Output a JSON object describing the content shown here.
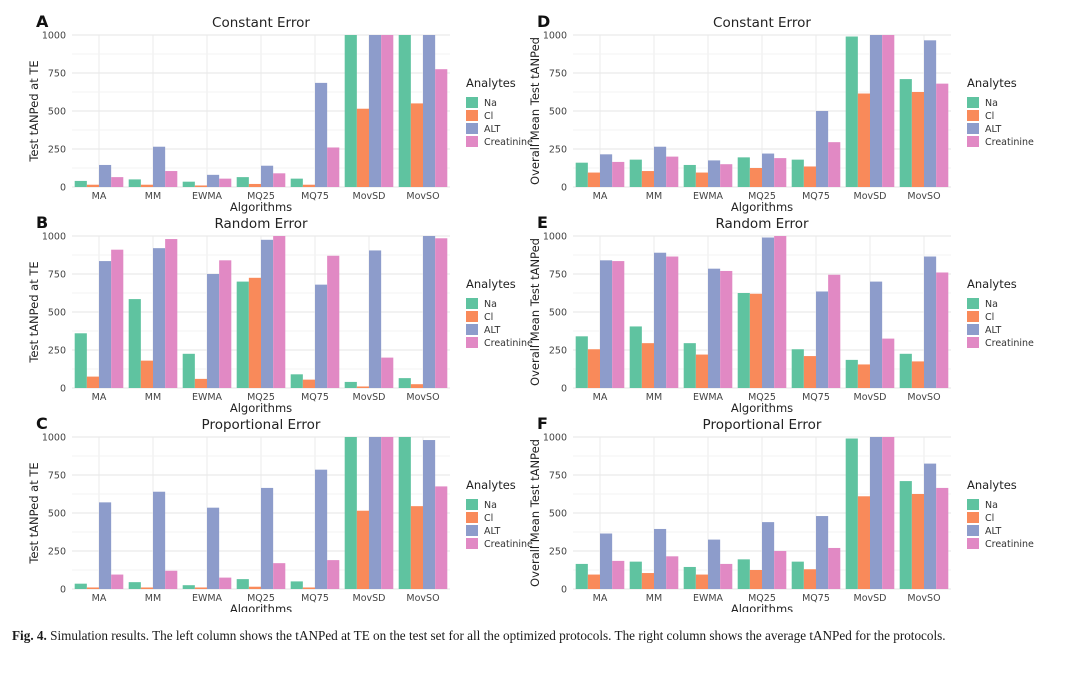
{
  "legend_title": "Analytes",
  "colors": {
    "Na": "#5fc3a0",
    "Cl": "#f98a5a",
    "ALT": "#8d9ccb",
    "Creatinine": "#e189c4"
  },
  "caption": {
    "label": "Fig. 4.",
    "text": " Simulation results. The left column shows the tANPed at TE on the test set for all the optimized protocols. The right column shows the average tANPed for the protocols."
  },
  "chart_data": [
    {
      "panel": "A",
      "type": "bar",
      "title": "Constant Error",
      "xlabel": "Algorithms",
      "ylabel": "Test tANPed at TE",
      "ylim": [
        0,
        1000
      ],
      "yticks": [
        0,
        250,
        500,
        750,
        1000
      ],
      "categories": [
        "MA",
        "MM",
        "EWMA",
        "MQ25",
        "MQ75",
        "MovSD",
        "MovSO"
      ],
      "legend_position": "right",
      "grid": true,
      "series": [
        {
          "name": "Na",
          "values": [
            40,
            50,
            35,
            65,
            55,
            1000,
            1000
          ]
        },
        {
          "name": "Cl",
          "values": [
            15,
            15,
            10,
            20,
            15,
            515,
            550
          ]
        },
        {
          "name": "ALT",
          "values": [
            145,
            265,
            80,
            140,
            685,
            1000,
            1000
          ]
        },
        {
          "name": "Creatinine",
          "values": [
            65,
            105,
            55,
            90,
            260,
            1000,
            775
          ]
        }
      ]
    },
    {
      "panel": "B",
      "type": "bar",
      "title": "Random Error",
      "xlabel": "Algorithms",
      "ylabel": "Test tANPed at TE",
      "ylim": [
        0,
        1000
      ],
      "yticks": [
        0,
        250,
        500,
        750,
        1000
      ],
      "categories": [
        "MA",
        "MM",
        "EWMA",
        "MQ25",
        "MQ75",
        "MovSD",
        "MovSO"
      ],
      "legend_position": "right",
      "grid": true,
      "series": [
        {
          "name": "Na",
          "values": [
            360,
            585,
            225,
            700,
            90,
            40,
            65
          ]
        },
        {
          "name": "Cl",
          "values": [
            75,
            180,
            60,
            725,
            55,
            10,
            25
          ]
        },
        {
          "name": "ALT",
          "values": [
            835,
            920,
            750,
            975,
            680,
            905,
            1000
          ]
        },
        {
          "name": "Creatinine",
          "values": [
            910,
            980,
            840,
            1000,
            870,
            200,
            985
          ]
        }
      ]
    },
    {
      "panel": "C",
      "type": "bar",
      "title": "Proportional Error",
      "xlabel": "Algorithms",
      "ylabel": "Test tANPed at TE",
      "ylim": [
        0,
        1000
      ],
      "yticks": [
        0,
        250,
        500,
        750,
        1000
      ],
      "categories": [
        "MA",
        "MM",
        "EWMA",
        "MQ25",
        "MQ75",
        "MovSD",
        "MovSO"
      ],
      "legend_position": "right",
      "grid": true,
      "series": [
        {
          "name": "Na",
          "values": [
            35,
            45,
            25,
            65,
            50,
            1000,
            1000
          ]
        },
        {
          "name": "Cl",
          "values": [
            10,
            10,
            10,
            15,
            10,
            515,
            545
          ]
        },
        {
          "name": "ALT",
          "values": [
            570,
            640,
            535,
            665,
            785,
            1000,
            980
          ]
        },
        {
          "name": "Creatinine",
          "values": [
            95,
            120,
            75,
            170,
            190,
            1000,
            675
          ]
        }
      ]
    },
    {
      "panel": "D",
      "type": "bar",
      "title": "Constant Error",
      "xlabel": "Algorithms",
      "ylabel": "Overall Mean Test tANPed",
      "ylim": [
        0,
        1000
      ],
      "yticks": [
        0,
        250,
        500,
        750,
        1000
      ],
      "categories": [
        "MA",
        "MM",
        "EWMA",
        "MQ25",
        "MQ75",
        "MovSD",
        "MovSO"
      ],
      "legend_position": "right",
      "grid": true,
      "series": [
        {
          "name": "Na",
          "values": [
            160,
            180,
            145,
            195,
            180,
            990,
            710
          ]
        },
        {
          "name": "Cl",
          "values": [
            95,
            105,
            95,
            125,
            135,
            615,
            625
          ]
        },
        {
          "name": "ALT",
          "values": [
            215,
            265,
            175,
            220,
            500,
            1000,
            965
          ]
        },
        {
          "name": "Creatinine",
          "values": [
            165,
            200,
            150,
            190,
            295,
            1000,
            680
          ]
        }
      ]
    },
    {
      "panel": "E",
      "type": "bar",
      "title": "Random Error",
      "xlabel": "Algorithms",
      "ylabel": "Overall Mean Test tANPed",
      "ylim": [
        0,
        1000
      ],
      "yticks": [
        0,
        250,
        500,
        750,
        1000
      ],
      "categories": [
        "MA",
        "MM",
        "EWMA",
        "MQ25",
        "MQ75",
        "MovSD",
        "MovSO"
      ],
      "legend_position": "right",
      "grid": true,
      "series": [
        {
          "name": "Na",
          "values": [
            340,
            405,
            295,
            625,
            255,
            185,
            225
          ]
        },
        {
          "name": "Cl",
          "values": [
            255,
            295,
            220,
            620,
            210,
            155,
            175
          ]
        },
        {
          "name": "ALT",
          "values": [
            840,
            890,
            785,
            990,
            635,
            700,
            865
          ]
        },
        {
          "name": "Creatinine",
          "values": [
            835,
            865,
            770,
            1000,
            745,
            325,
            760
          ]
        }
      ]
    },
    {
      "panel": "F",
      "type": "bar",
      "title": "Proportional Error",
      "xlabel": "Algorithms",
      "ylabel": "Overall Mean Test tANPed",
      "ylim": [
        0,
        1000
      ],
      "yticks": [
        0,
        250,
        500,
        750,
        1000
      ],
      "categories": [
        "MA",
        "MM",
        "EWMA",
        "MQ25",
        "MQ75",
        "MovSD",
        "MovSO"
      ],
      "legend_position": "right",
      "grid": true,
      "series": [
        {
          "name": "Na",
          "values": [
            165,
            180,
            145,
            195,
            180,
            990,
            710
          ]
        },
        {
          "name": "Cl",
          "values": [
            95,
            105,
            95,
            125,
            130,
            610,
            625
          ]
        },
        {
          "name": "ALT",
          "values": [
            365,
            395,
            325,
            440,
            480,
            1000,
            825
          ]
        },
        {
          "name": "Creatinine",
          "values": [
            185,
            215,
            165,
            250,
            270,
            1000,
            665
          ]
        }
      ]
    }
  ]
}
